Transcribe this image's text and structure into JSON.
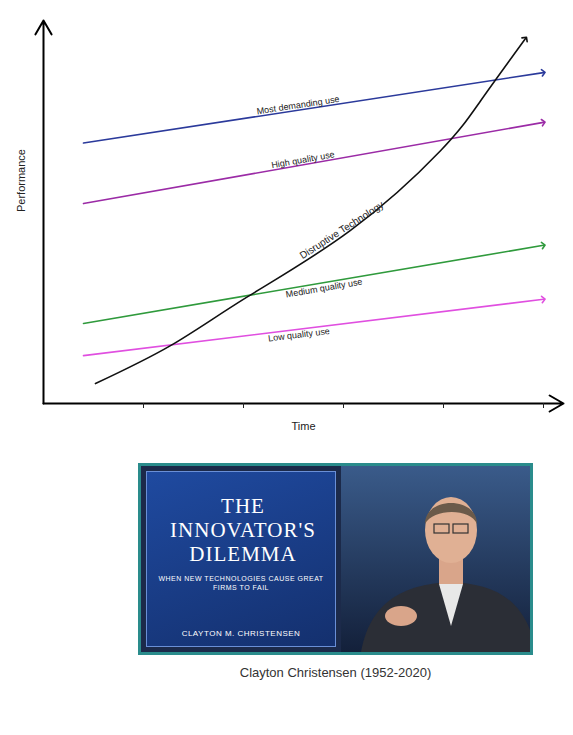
{
  "chart_data": {
    "type": "line",
    "x_label": "Time",
    "y_label": "Performance",
    "xlim": [
      0,
      10.4
    ],
    "ylim": [
      0,
      10
    ],
    "xticks": [
      2,
      4,
      6,
      8,
      10
    ],
    "tick_labels": false,
    "grid": false,
    "marker": "arrow",
    "series": [
      {
        "name": "Most demanding use",
        "color": "#2b3a9b",
        "x": [
          0.8,
          10
        ],
        "values": [
          6.8,
          8.64
        ]
      },
      {
        "name": "High quality use",
        "color": "#9b2ba6",
        "x": [
          0.8,
          10
        ],
        "values": [
          5.22,
          7.34
        ]
      },
      {
        "name": "Medium quality use",
        "color": "#2f9a3c",
        "x": [
          0.8,
          10
        ],
        "values": [
          2.09,
          4.13
        ]
      },
      {
        "name": "Low quality use",
        "color": "#e04fe0",
        "x": [
          0.8,
          10
        ],
        "values": [
          1.25,
          2.72
        ]
      },
      {
        "name": "Disruptive Technology",
        "color": "#111111",
        "x": [
          1.04,
          2.54,
          4.06,
          6.14,
          7.94,
          8.74,
          9.64
        ],
        "values": [
          0.52,
          1.51,
          2.77,
          4.52,
          6.6,
          7.9,
          9.53
        ]
      }
    ]
  },
  "figure": {
    "book_cover": {
      "title": "THE INNOVATOR'S DILEMMA",
      "subtitle": "WHEN NEW TECHNOLOGIES CAUSE GREAT FIRMS TO FAIL",
      "author": "CLAYTON M. CHRISTENSEN"
    },
    "caption": "Clayton Christensen (1952-2020)"
  }
}
